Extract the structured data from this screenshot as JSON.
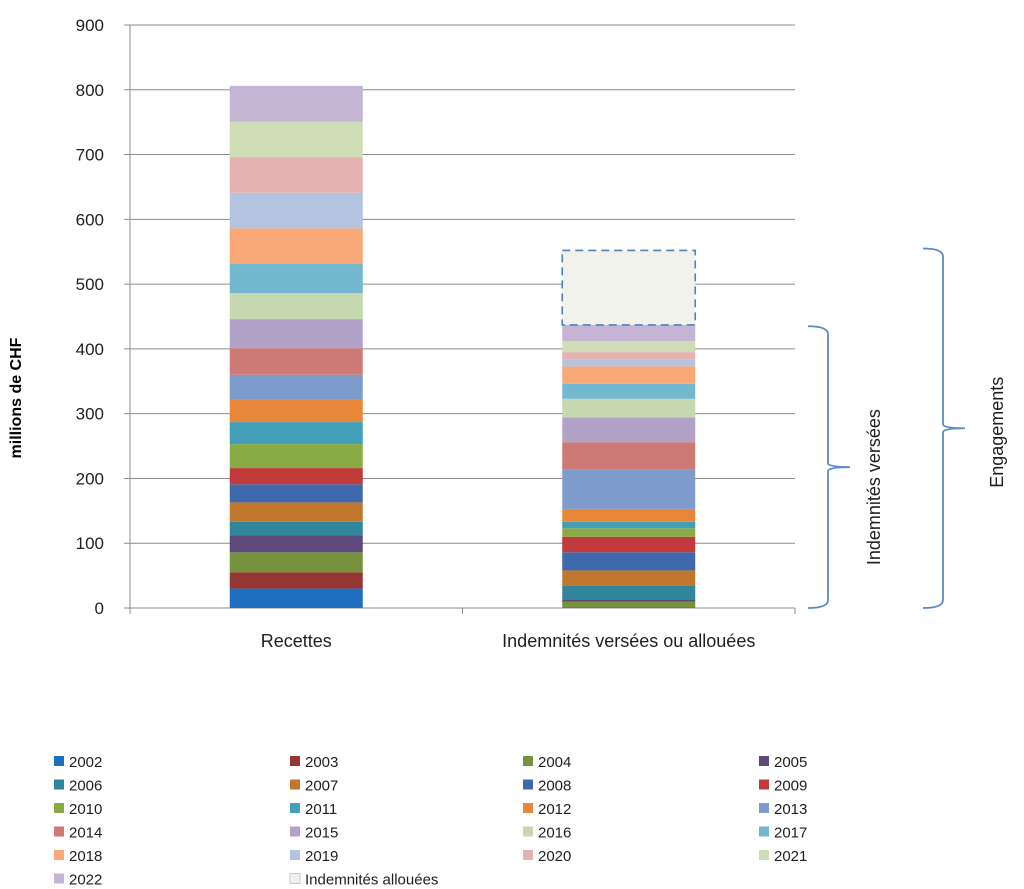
{
  "chart_data": {
    "type": "bar",
    "stacked": true,
    "ylabel": "millions de CHF",
    "ylim": [
      0,
      900
    ],
    "yticks": [
      0,
      100,
      200,
      300,
      400,
      500,
      600,
      700,
      800,
      900
    ],
    "grid": true,
    "categories": [
      "Recettes",
      "Indemnités versées ou allouées"
    ],
    "series": [
      {
        "name": "2002",
        "color": "#1f6fc0",
        "values": [
          30,
          0
        ]
      },
      {
        "name": "2003",
        "color": "#963634",
        "values": [
          25,
          1
        ]
      },
      {
        "name": "2004",
        "color": "#76923c",
        "values": [
          31,
          9
        ]
      },
      {
        "name": "2005",
        "color": "#5f497a",
        "values": [
          26,
          3
        ]
      },
      {
        "name": "2006",
        "color": "#31859c",
        "values": [
          21,
          21
        ]
      },
      {
        "name": "2007",
        "color": "#c0782d",
        "values": [
          30,
          24
        ]
      },
      {
        "name": "2008",
        "color": "#3e6aad",
        "values": [
          28,
          28
        ]
      },
      {
        "name": "2009",
        "color": "#c0393b",
        "values": [
          25,
          24
        ]
      },
      {
        "name": "2010",
        "color": "#8aab44",
        "values": [
          37,
          13
        ]
      },
      {
        "name": "2011",
        "color": "#41a0b8",
        "values": [
          34,
          10
        ]
      },
      {
        "name": "2012",
        "color": "#e8873a",
        "values": [
          35,
          20
        ]
      },
      {
        "name": "2013",
        "color": "#7e9ccb",
        "values": [
          38,
          61
        ]
      },
      {
        "name": "2014",
        "color": "#cd7a77",
        "values": [
          41,
          42
        ]
      },
      {
        "name": "2015",
        "color": "#b3a2c7",
        "values": [
          45,
          38
        ]
      },
      {
        "name": "2016",
        "color": "#c6d8b0",
        "values": [
          40,
          29
        ]
      },
      {
        "name": "2017",
        "color": "#72b8cf",
        "values": [
          45,
          23
        ]
      },
      {
        "name": "2018",
        "color": "#f9a977",
        "values": [
          55,
          27
        ]
      },
      {
        "name": "2019",
        "color": "#b3c3e0",
        "values": [
          55,
          11
        ]
      },
      {
        "name": "2020",
        "color": "#e2b3b2",
        "values": [
          55,
          11
        ]
      },
      {
        "name": "2021",
        "color": "#cfddb6",
        "values": [
          55,
          17
        ]
      },
      {
        "name": "2022",
        "color": "#c4b5d5",
        "values": [
          55,
          25
        ]
      },
      {
        "name": "Indemnités allouées",
        "color": "#f2f2ec",
        "border": "#4f81bd",
        "dashed": true,
        "values": [
          0,
          115
        ]
      }
    ],
    "brackets": [
      {
        "label": "Indemnités  versées",
        "from": 0,
        "to": 435
      },
      {
        "label": "Engagements",
        "from": 0,
        "to": 555
      }
    ]
  }
}
